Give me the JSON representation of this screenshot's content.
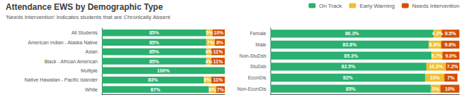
{
  "chart_data": [
    {
      "type": "bar",
      "title": "Attendance EWS by Demographic Type",
      "subtitle": "'Needs Intervention' indicates students that are Chronically Absent",
      "orientation": "horizontal",
      "stacked": true,
      "data_labels": true,
      "grid": false,
      "tick_labels": "y",
      "legend": "upper right",
      "xlim": [
        0,
        100
      ],
      "xticks": [],
      "categories": [
        "All Students",
        "American Indian - Alaska Native",
        "Asian",
        "Black - African American",
        "Multiple",
        "Native Hawaiian - Pacific Islander",
        "White"
      ],
      "series": [
        {
          "name": "On Track",
          "color": "#2ab06f",
          "values": [
            85,
            85,
            85,
            85,
            100,
            83,
            87
          ],
          "value_labels": [
            "85%",
            "85%",
            "85%",
            "85%",
            "100%",
            "83%",
            "87%"
          ]
        },
        {
          "name": "Early Warning",
          "color": "#f0c030",
          "values": [
            5,
            7,
            4,
            4,
            0,
            6,
            6
          ],
          "value_labels": [
            "5%",
            "7%",
            "4%",
            "4%",
            null,
            "6%",
            "6%"
          ]
        },
        {
          "name": "Needs Intervention",
          "color": "#d45000",
          "values": [
            10,
            8,
            11,
            11,
            0,
            11,
            7
          ],
          "value_labels": [
            "10%",
            "8%",
            "11%",
            "11%",
            null,
            "11%",
            "7%"
          ]
        }
      ]
    },
    {
      "type": "bar",
      "orientation": "horizontal",
      "stacked": true,
      "data_labels": true,
      "grid": false,
      "tick_labels": "y",
      "xlim": [
        0,
        100
      ],
      "xticks": [],
      "categories": [
        "Female",
        "Male",
        "Non-StuDsb",
        "StuDsb",
        "EconDis",
        "Non-EconDis"
      ],
      "series": [
        {
          "name": "On Track",
          "color": "#2ab06f",
          "values": [
            86.3,
            83.8,
            85.3,
            82.5,
            82,
            85
          ],
          "value_labels": [
            "86.3%",
            "83.8%",
            "85.3%",
            "82.5%",
            "82%",
            "85%"
          ]
        },
        {
          "name": "Early Warning",
          "color": "#f0c030",
          "values": [
            4.2,
            6.6,
            5.7,
            10.3,
            10,
            5
          ],
          "value_labels": [
            "4.2%",
            "6.6%",
            "5.7%",
            "10.3%",
            "10%",
            "5%"
          ]
        },
        {
          "name": "Needs Intervention",
          "color": "#d45000",
          "values": [
            9.5,
            9.6,
            9.0,
            7.2,
            7,
            10
          ],
          "value_labels": [
            "9.5%",
            "9.6%",
            "9.0%",
            "7.2%",
            "7%",
            "10%"
          ]
        }
      ]
    }
  ]
}
